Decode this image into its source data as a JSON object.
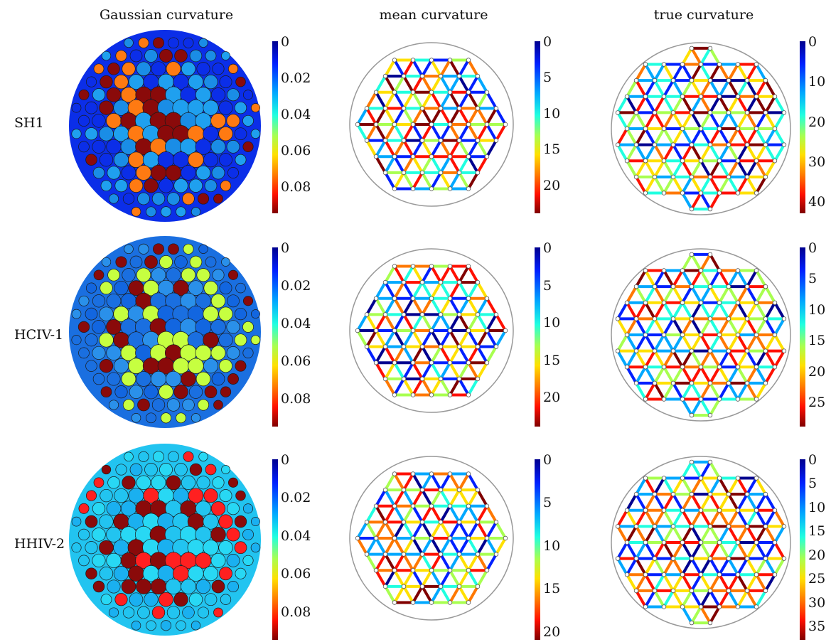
{
  "column_titles": [
    "Gaussian curvature",
    "mean curvature",
    "true curvature"
  ],
  "row_labels": [
    "SH1",
    "HCIV-1",
    "HHIV-2"
  ],
  "colormap": {
    "name": "jet",
    "stops": [
      "#00008f",
      "#0020ff",
      "#00a8ff",
      "#20ffe0",
      "#a8ff50",
      "#ffe000",
      "#ff7800",
      "#ff1000",
      "#800000"
    ]
  },
  "panels": [
    {
      "row": 0,
      "col": 0,
      "kind": "gaussian",
      "colorbar": {
        "ticks": [
          "0",
          "0.02",
          "0.04",
          "0.06",
          "0.08"
        ],
        "range": [
          0,
          0.095
        ]
      },
      "palette": [
        "#0b2ee8",
        "#1a8de6",
        "#ff7a12",
        "#8a0a0a",
        "#1fa0ef"
      ]
    },
    {
      "row": 0,
      "col": 1,
      "kind": "graph",
      "colorbar": {
        "ticks": [
          "0",
          "5",
          "10",
          "15",
          "20"
        ],
        "range": [
          0,
          24
        ]
      }
    },
    {
      "row": 0,
      "col": 2,
      "kind": "graph",
      "colorbar": {
        "ticks": [
          "0",
          "10",
          "20",
          "30",
          "40"
        ],
        "range": [
          0,
          43
        ]
      }
    },
    {
      "row": 1,
      "col": 0,
      "kind": "gaussian",
      "colorbar": {
        "ticks": [
          "0",
          "0.02",
          "0.04",
          "0.06",
          "0.08"
        ],
        "range": [
          0,
          0.095
        ]
      },
      "palette": [
        "#1a6fe0",
        "#2a90ea",
        "#c6ff40",
        "#8a0a0a",
        "#1266e0"
      ]
    },
    {
      "row": 1,
      "col": 1,
      "kind": "graph",
      "colorbar": {
        "ticks": [
          "0",
          "5",
          "10",
          "15",
          "20"
        ],
        "range": [
          0,
          24
        ]
      }
    },
    {
      "row": 1,
      "col": 2,
      "kind": "graph",
      "colorbar": {
        "ticks": [
          "0",
          "5",
          "10",
          "15",
          "20",
          "25"
        ],
        "range": [
          0,
          29
        ]
      }
    },
    {
      "row": 2,
      "col": 0,
      "kind": "gaussian",
      "colorbar": {
        "ticks": [
          "0",
          "0.02",
          "0.04",
          "0.06",
          "0.08"
        ],
        "range": [
          0,
          0.095
        ]
      },
      "palette": [
        "#22c4f0",
        "#1ab0f0",
        "#28d8f4",
        "#8a0a0a",
        "#ff2020"
      ]
    },
    {
      "row": 2,
      "col": 1,
      "kind": "graph",
      "colorbar": {
        "ticks": [
          "0",
          "5",
          "10",
          "15",
          "20"
        ],
        "range": [
          0,
          21
        ]
      }
    },
    {
      "row": 2,
      "col": 2,
      "kind": "graph",
      "colorbar": {
        "ticks": [
          "0",
          "5",
          "10",
          "15",
          "20",
          "25",
          "30",
          "35"
        ],
        "range": [
          0,
          38
        ]
      }
    }
  ]
}
